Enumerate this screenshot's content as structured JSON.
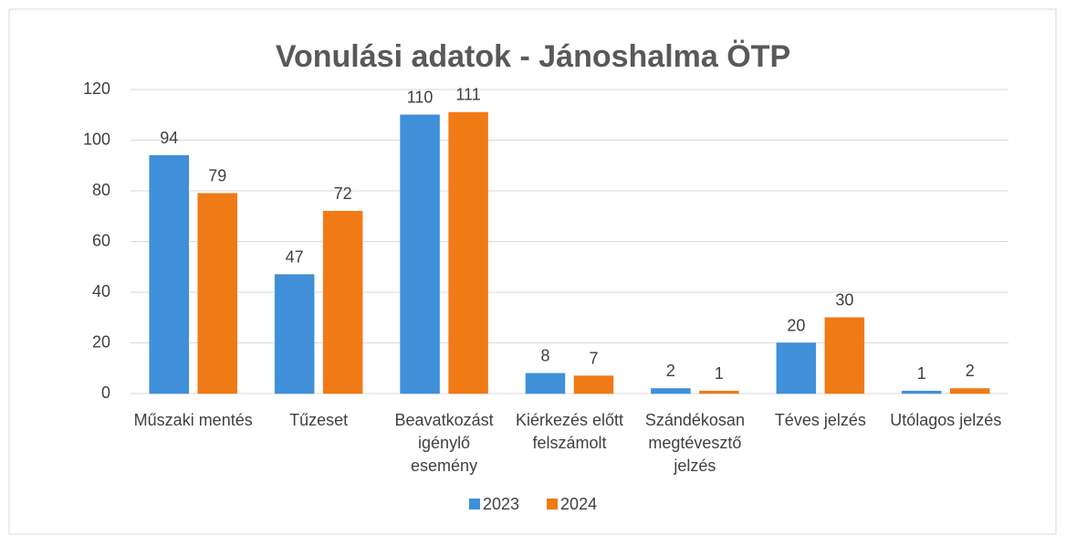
{
  "chart_data": {
    "type": "bar",
    "title": "Vonulási adatok - Jánoshalma ÖTP",
    "categories": [
      "Műszaki mentés",
      "Tűzeset",
      "Beavatkozást igénylő esemény",
      "Kiérkezés előtt felszámolt",
      "Szándékosan megtévesztő jelzés",
      "Téves jelzés",
      "Utólagos jelzés"
    ],
    "series": [
      {
        "name": "2023",
        "color": "#3f8fd9",
        "values": [
          94,
          47,
          110,
          8,
          2,
          20,
          1
        ]
      },
      {
        "name": "2024",
        "color": "#f07a16",
        "values": [
          79,
          72,
          111,
          7,
          1,
          30,
          2
        ]
      }
    ],
    "ylim": [
      0,
      120
    ],
    "yticks": [
      0,
      20,
      40,
      60,
      80,
      100,
      120
    ],
    "grid": true,
    "legend": "bottom"
  }
}
